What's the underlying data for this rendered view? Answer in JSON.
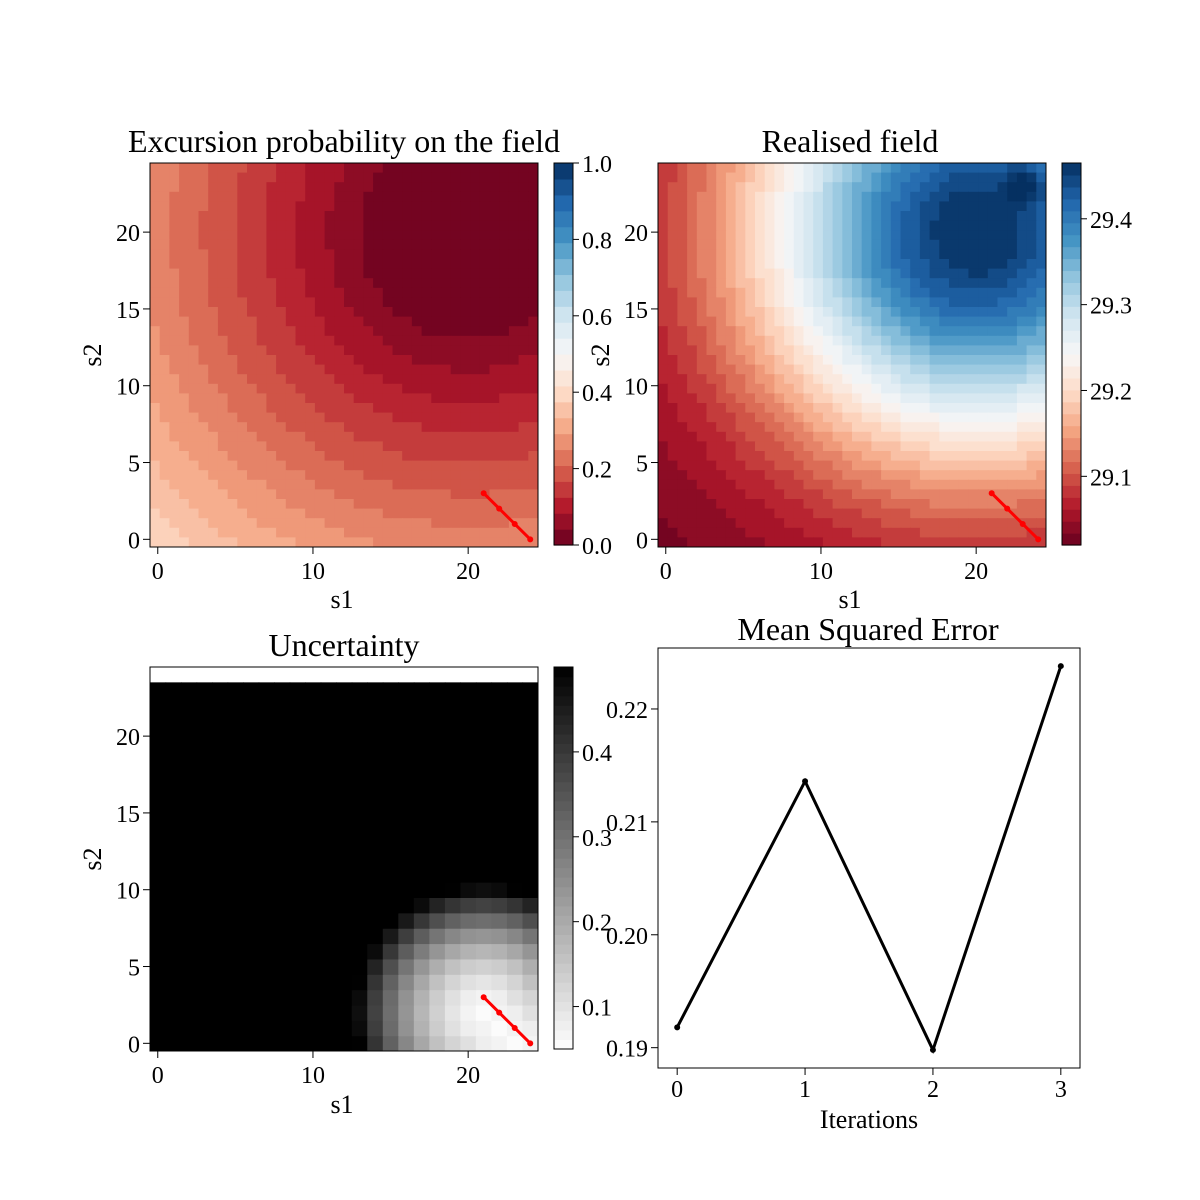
{
  "chart_data": [
    {
      "type": "heatmap",
      "title": "Excursion probability on the field",
      "xlabel": "s1",
      "ylabel": "s2",
      "xticks": [
        "0",
        "10",
        "20"
      ],
      "yticks": [
        "0",
        "5",
        "10",
        "15",
        "20"
      ],
      "xlim": [
        -0.5,
        24.5
      ],
      "ylim": [
        24.5,
        -0.5
      ],
      "colormap": "RdBu",
      "colorbar": {
        "range": [
          0.0,
          1.0
        ],
        "ticks": [
          "0.0",
          "0.2",
          "0.4",
          "0.6",
          "0.8",
          "1.0"
        ]
      },
      "field": {
        "center_s1": 20,
        "center_s2": 4,
        "value_min": 0.0,
        "value_max": 0.38,
        "radius_to_max": 28
      },
      "path": {
        "s1": [
          21,
          22,
          23,
          24
        ],
        "s2": [
          3,
          2,
          1,
          0
        ],
        "color": "#ff0000"
      }
    },
    {
      "type": "heatmap",
      "title": "Realised field",
      "xlabel": "s1",
      "ylabel": "s2",
      "xticks": [
        "0",
        "10",
        "20"
      ],
      "yticks": [
        "0",
        "5",
        "10",
        "15",
        "20"
      ],
      "xlim": [
        -0.5,
        24.5
      ],
      "ylim": [
        24.5,
        -0.5
      ],
      "colormap": "RdBu",
      "colorbar": {
        "range": [
          29.02,
          29.465
        ],
        "ticks": [
          "29.1",
          "29.2",
          "29.3",
          "29.4"
        ]
      },
      "field": {
        "center_s1": 20,
        "center_s2": 4,
        "value_min": 29.02,
        "value_max": 29.465
      },
      "path": {
        "s1": [
          21,
          22,
          23,
          24
        ],
        "s2": [
          3,
          2,
          1,
          0
        ],
        "color": "#ff0000"
      }
    },
    {
      "type": "heatmap",
      "title": "Uncertainty",
      "xlabel": "s1",
      "ylabel": "s2",
      "xticks": [
        "0",
        "10",
        "20"
      ],
      "yticks": [
        "0",
        "5",
        "10",
        "15",
        "20"
      ],
      "xlim": [
        -0.5,
        24.5
      ],
      "ylim": [
        24.5,
        -0.5
      ],
      "colormap": "Greys",
      "colorbar": {
        "range": [
          0.05,
          0.5
        ],
        "ticks": [
          "0.1",
          "0.2",
          "0.3",
          "0.4"
        ]
      },
      "field": {
        "value_min": 0.05,
        "value_max": 0.5
      },
      "path": {
        "s1": [
          21,
          22,
          23,
          24
        ],
        "s2": [
          3,
          2,
          1,
          0
        ],
        "color": "#ff0000"
      }
    },
    {
      "type": "line",
      "title": "Mean Squared Error",
      "xlabel": "Iterations",
      "ylabel": "",
      "x": [
        0,
        1,
        2,
        3
      ],
      "values": [
        0.1918,
        0.2136,
        0.1898,
        0.2238
      ],
      "xticks": [
        "0",
        "1",
        "2",
        "3"
      ],
      "yticks": [
        "0.19",
        "0.20",
        "0.21",
        "0.22"
      ],
      "xlim": [
        -0.15,
        3.15
      ],
      "ylim": [
        0.1882,
        0.2254
      ],
      "color": "#000000"
    }
  ]
}
